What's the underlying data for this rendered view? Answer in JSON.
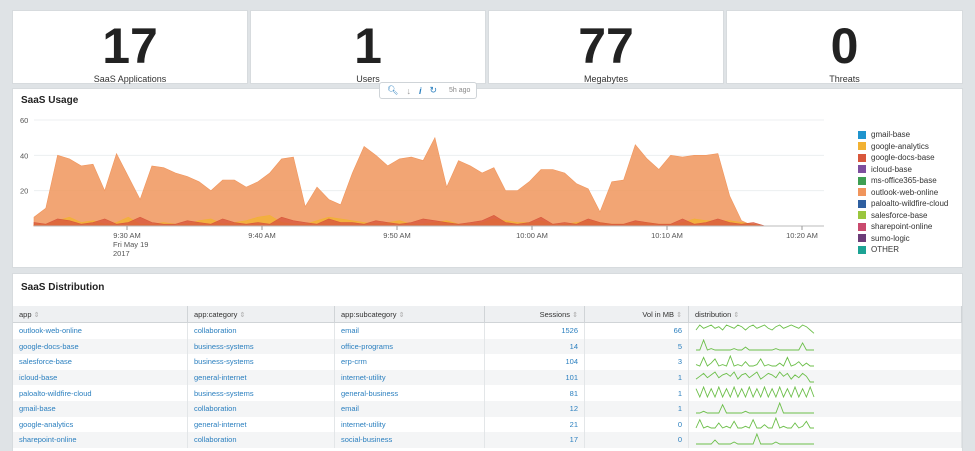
{
  "kpis": [
    {
      "value": "17",
      "label": "SaaS Applications"
    },
    {
      "value": "1",
      "label": "Users"
    },
    {
      "value": "77",
      "label": "Megabytes"
    },
    {
      "value": "0",
      "label": "Threats"
    }
  ],
  "toolbar": {
    "ago": "5h ago",
    "icons": [
      "search-icon",
      "download-icon",
      "info-icon",
      "refresh-icon"
    ]
  },
  "usage": {
    "title": "SaaS Usage",
    "chart_data": {
      "type": "area",
      "title": "SaaS Usage",
      "ylim": [
        0,
        60
      ],
      "y_ticks": [
        "60",
        "40",
        "20"
      ],
      "x_ticks": [
        "9:30 AM",
        "9:40 AM",
        "9:50 AM",
        "10:00 AM",
        "10:10 AM",
        "10:20 AM"
      ],
      "x_tick_sublabel": [
        "Fri May 19",
        "2017"
      ],
      "legend_position": "right",
      "series": [
        {
          "name": "gmail-base",
          "color": "#1f94cd",
          "values": [
            0,
            0,
            0,
            0,
            0,
            0,
            0,
            0,
            0,
            0,
            0,
            0,
            0,
            0,
            0,
            0,
            0,
            0,
            0,
            0,
            0,
            0,
            0,
            0,
            0,
            0,
            0,
            0,
            0,
            0,
            0,
            0,
            0,
            0,
            0,
            0,
            0,
            0,
            0,
            0,
            0,
            0,
            0,
            0,
            0,
            0,
            0,
            0,
            0,
            0,
            0,
            0,
            0,
            0,
            0,
            0,
            0,
            0,
            0,
            0,
            0,
            0,
            0,
            0,
            0,
            0,
            0,
            0
          ]
        },
        {
          "name": "google-analytics",
          "color": "#f2b233",
          "values": [
            1,
            1,
            3,
            5,
            2,
            3,
            1,
            2,
            5,
            1,
            1,
            2,
            1,
            1,
            3,
            4,
            1,
            2,
            3,
            5,
            6,
            2,
            1,
            1,
            3,
            5,
            4,
            3,
            2,
            1,
            2,
            3,
            1,
            1,
            2,
            3,
            1,
            1,
            2,
            4,
            3,
            2,
            2,
            3,
            1,
            1,
            2,
            3,
            2,
            1,
            1,
            2,
            2,
            1,
            1,
            2,
            4,
            3,
            3,
            3,
            2,
            1,
            0,
            0,
            0,
            0,
            0,
            0
          ]
        },
        {
          "name": "google-docs-base",
          "color": "#d8573c",
          "values": [
            2,
            1,
            4,
            3,
            1,
            2,
            4,
            1,
            2,
            5,
            2,
            1,
            1,
            3,
            2,
            1,
            4,
            2,
            1,
            2,
            1,
            5,
            3,
            2,
            1,
            4,
            2,
            2,
            1,
            3,
            2,
            1,
            2,
            4,
            3,
            2,
            1,
            2,
            3,
            6,
            2,
            1,
            2,
            5,
            1,
            2,
            1,
            4,
            2,
            1,
            1,
            3,
            2,
            1,
            1,
            4,
            1,
            2,
            4,
            2,
            1,
            2,
            0,
            0,
            0,
            0,
            0,
            0
          ]
        },
        {
          "name": "outlook-web-online",
          "color": "#f0955c",
          "values": [
            5,
            10,
            40,
            38,
            34,
            35,
            20,
            41,
            28,
            15,
            34,
            33,
            30,
            28,
            25,
            20,
            26,
            26,
            22,
            25,
            30,
            38,
            39,
            11,
            22,
            15,
            12,
            30,
            45,
            40,
            34,
            38,
            39,
            37,
            50,
            22,
            37,
            34,
            30,
            33,
            20,
            20,
            25,
            32,
            32,
            30,
            24,
            21,
            8,
            25,
            26,
            46,
            38,
            32,
            40,
            39,
            40,
            40,
            41,
            17,
            3,
            0,
            0,
            0,
            0,
            0,
            0,
            0
          ]
        }
      ]
    },
    "legend": [
      {
        "name": "gmail-base",
        "color": "#1f94cd"
      },
      {
        "name": "google-analytics",
        "color": "#f2b233"
      },
      {
        "name": "google-docs-base",
        "color": "#d8573c"
      },
      {
        "name": "icloud-base",
        "color": "#7d4e9e"
      },
      {
        "name": "ms-office365-base",
        "color": "#3e9e52"
      },
      {
        "name": "outlook-web-online",
        "color": "#f0955c"
      },
      {
        "name": "paloalto-wildfire-cloud",
        "color": "#2f5fa0"
      },
      {
        "name": "salesforce-base",
        "color": "#9ac63e"
      },
      {
        "name": "sharepoint-online",
        "color": "#c94a6e"
      },
      {
        "name": "sumo-logic",
        "color": "#6b3c78"
      },
      {
        "name": "OTHER",
        "color": "#1ca394"
      }
    ]
  },
  "distribution": {
    "title": "SaaS Distribution",
    "columns": [
      "app",
      "app:category",
      "app:subcategory",
      "Sessions",
      "Vol in MB",
      "distribution"
    ],
    "rows": [
      {
        "app": "outlook-web-online",
        "category": "collaboration",
        "subcategory": "email",
        "sessions": "1526",
        "vol": "66",
        "spark": [
          3,
          6,
          4,
          5,
          6,
          4,
          5,
          3,
          6,
          5,
          4,
          6,
          5,
          3,
          5,
          6,
          4,
          5,
          6,
          4,
          3,
          5,
          6,
          4,
          5,
          6,
          5,
          4,
          6,
          5,
          3,
          1
        ]
      },
      {
        "app": "google-docs-base",
        "category": "business-systems",
        "subcategory": "office-programs",
        "sessions": "14",
        "vol": "5",
        "spark": [
          0,
          0,
          7,
          0,
          1,
          0,
          0,
          0,
          0,
          0,
          1,
          0,
          0,
          2,
          0,
          0,
          0,
          0,
          0,
          0,
          0,
          1,
          0,
          0,
          0,
          0,
          0,
          0,
          5,
          0,
          0,
          0
        ]
      },
      {
        "app": "salesforce-base",
        "category": "business-systems",
        "subcategory": "erp-crm",
        "sessions": "104",
        "vol": "3",
        "spark": [
          1,
          0,
          6,
          0,
          2,
          5,
          0,
          1,
          0,
          7,
          0,
          1,
          0,
          3,
          0,
          0,
          1,
          5,
          0,
          1,
          0,
          0,
          2,
          0,
          6,
          0,
          1,
          3,
          0,
          2,
          0,
          0
        ]
      },
      {
        "app": "icloud-base",
        "category": "general-internet",
        "subcategory": "internet-utility",
        "sessions": "101",
        "vol": "1",
        "spark": [
          2,
          4,
          6,
          3,
          5,
          7,
          3,
          5,
          6,
          4,
          7,
          2,
          5,
          6,
          3,
          5,
          7,
          2,
          4,
          6,
          5,
          3,
          7,
          4,
          6,
          2,
          5,
          3,
          6,
          4,
          0,
          0
        ]
      },
      {
        "app": "paloalto-wildfire-cloud",
        "category": "business-systems",
        "subcategory": "general-business",
        "sessions": "81",
        "vol": "1",
        "spark": [
          5,
          0,
          6,
          0,
          5,
          0,
          6,
          0,
          5,
          0,
          6,
          0,
          5,
          0,
          6,
          0,
          5,
          0,
          6,
          0,
          5,
          0,
          6,
          0,
          5,
          0,
          6,
          0,
          5,
          0,
          6,
          0
        ]
      },
      {
        "app": "gmail-base",
        "category": "collaboration",
        "subcategory": "email",
        "sessions": "12",
        "vol": "1",
        "spark": [
          0,
          0,
          1,
          0,
          0,
          0,
          0,
          5,
          0,
          0,
          0,
          0,
          0,
          1,
          0,
          0,
          0,
          0,
          0,
          0,
          0,
          0,
          6,
          0,
          0,
          0,
          0,
          0,
          0,
          0,
          0,
          0
        ]
      },
      {
        "app": "google-analytics",
        "category": "general-internet",
        "subcategory": "internet-utility",
        "sessions": "21",
        "vol": "0",
        "spark": [
          0,
          5,
          0,
          1,
          0,
          0,
          3,
          0,
          1,
          0,
          4,
          0,
          0,
          1,
          0,
          5,
          0,
          0,
          2,
          0,
          0,
          6,
          0,
          1,
          0,
          0,
          3,
          0,
          1,
          4,
          0,
          0
        ]
      },
      {
        "app": "sharepoint-online",
        "category": "collaboration",
        "subcategory": "social-business",
        "sessions": "17",
        "vol": "0",
        "spark": [
          0,
          0,
          0,
          0,
          0,
          2,
          0,
          0,
          0,
          0,
          1,
          0,
          0,
          0,
          0,
          0,
          5,
          0,
          0,
          0,
          0,
          1,
          0,
          0,
          0,
          0,
          0,
          0,
          0,
          0,
          0,
          0
        ]
      }
    ]
  }
}
